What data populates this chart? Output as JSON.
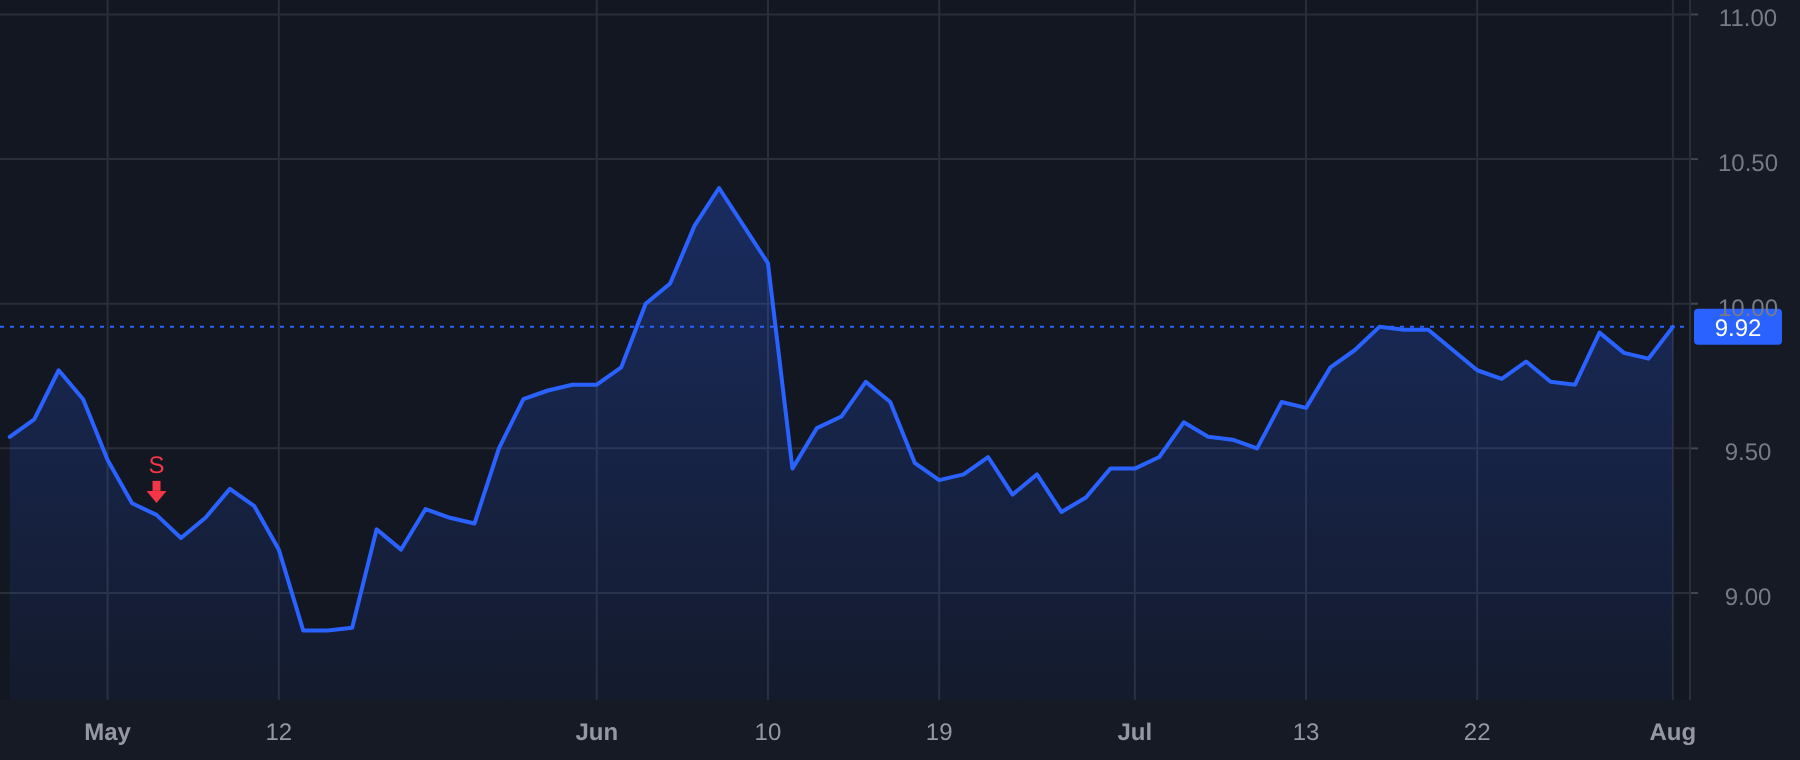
{
  "chart_data": {
    "type": "area",
    "categories": [
      null,
      null,
      null,
      null,
      "May",
      null,
      null,
      null,
      null,
      null,
      null,
      "12",
      null,
      null,
      null,
      null,
      null,
      null,
      null,
      null,
      null,
      null,
      null,
      null,
      "Jun",
      null,
      null,
      null,
      null,
      null,
      null,
      "10",
      null,
      null,
      null,
      null,
      null,
      null,
      "19",
      null,
      null,
      null,
      null,
      null,
      null,
      null,
      "Jul",
      null,
      null,
      null,
      null,
      null,
      null,
      "13",
      null,
      null,
      null,
      null,
      null,
      null,
      "22",
      null,
      null,
      null,
      null,
      null,
      null,
      null,
      "Aug"
    ],
    "series": [
      {
        "color": "#2962ff",
        "values": [
          9.54,
          9.6,
          9.77,
          9.67,
          9.46,
          9.31,
          9.27,
          9.19,
          9.26,
          9.36,
          9.3,
          9.15,
          8.87,
          8.87,
          8.88,
          9.22,
          9.15,
          9.29,
          9.26,
          9.24,
          9.5,
          9.67,
          9.7,
          9.72,
          9.72,
          9.78,
          10.0,
          10.07,
          10.27,
          10.4,
          10.27,
          10.14,
          9.43,
          9.57,
          9.61,
          9.73,
          9.66,
          9.45,
          9.39,
          9.41,
          9.47,
          9.34,
          9.41,
          9.28,
          9.33,
          9.43,
          9.43,
          9.47,
          9.59,
          9.54,
          9.53,
          9.5,
          9.66,
          9.64,
          9.78,
          9.84,
          9.92,
          9.91,
          9.91,
          9.84,
          9.77,
          9.74,
          9.8,
          9.73,
          9.72,
          9.9,
          9.83,
          9.81,
          9.92
        ]
      }
    ],
    "ylim": [
      8.63,
      11.05
    ],
    "yticks": [
      {
        "value": 9,
        "label": "9.00"
      },
      {
        "value": 9.5,
        "label": "9.50"
      },
      {
        "value": 10,
        "label": "10.00"
      },
      {
        "value": 10.5,
        "label": "10.50"
      },
      {
        "value": 11,
        "label": "11.00"
      }
    ],
    "grid": true,
    "ref_lines": [
      {
        "axis": "y",
        "value": 9.92,
        "label": "9.92",
        "color": "#2962ff",
        "line_style": "dotted"
      }
    ],
    "annotations": [
      {
        "text": "S",
        "y": 9.27
      }
    ]
  }
}
